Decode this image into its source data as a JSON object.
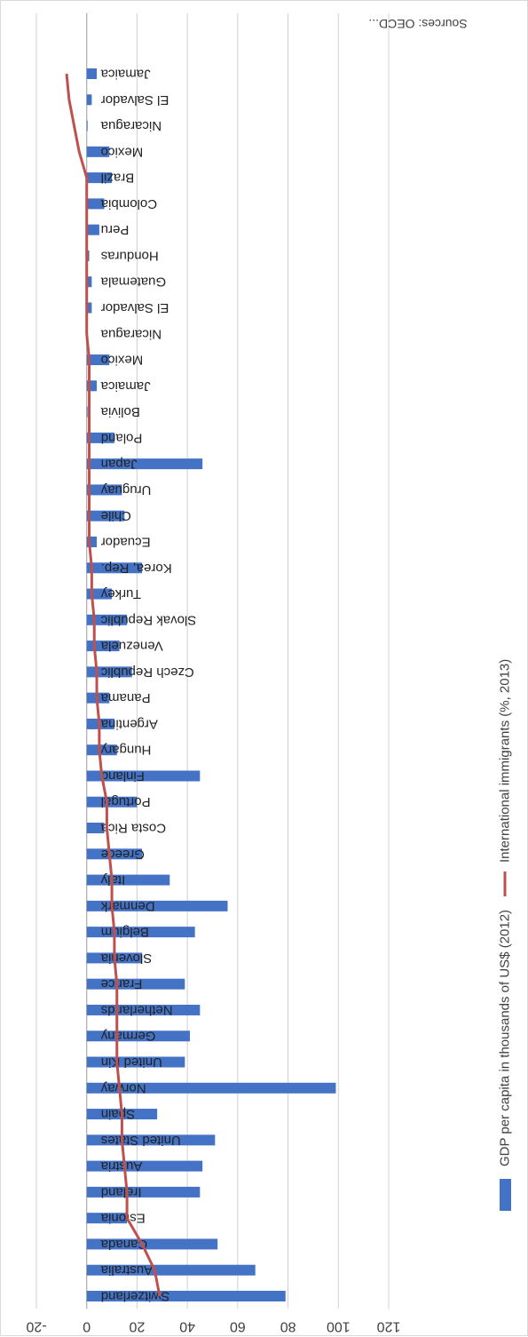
{
  "chart_data": {
    "type": "bar",
    "orientation": "horizontal",
    "text_rotation": "rotated 180 degrees",
    "categories": [
      "Switzerland",
      "Australia",
      "Canada",
      "Estonia",
      "Ireland",
      "Austria",
      "United States",
      "Spain",
      "Norway",
      "United Kin",
      "Germany",
      "Netherlands",
      "France",
      "Slovenia",
      "Belgium",
      "Denmark",
      "Italy",
      "Greece",
      "Costa Rica",
      "Portugal",
      "Finland",
      "Hungary",
      "Argentina",
      "Panama",
      "Czech Republic",
      "Venezuela",
      "Slovak Republic",
      "Turkey",
      "Korea, Rep.",
      "Ecuador",
      "Chile",
      "Uruguay",
      "Japan",
      "Poland",
      "Bolivia",
      "Jamaica",
      "Mexico",
      "Nicaragua",
      "El Salvador",
      "Guatemala",
      "Honduras",
      "Peru",
      "Colombia",
      "Brazil",
      "Mexico",
      "Nicaragua",
      "El Salvador",
      "Jamaica"
    ],
    "series": [
      {
        "name": "GDP per capita in thousands of US$ (2012)",
        "kind": "bar",
        "color": "#4472C4",
        "values": [
          79,
          67,
          52,
          16,
          45,
          46,
          51,
          28,
          99,
          39,
          41,
          45,
          39,
          22,
          43,
          56,
          33,
          22,
          7,
          20,
          45,
          12,
          11,
          9,
          18,
          13,
          16,
          10,
          22,
          4,
          15,
          14,
          46,
          11,
          0,
          4,
          9,
          0,
          2,
          2,
          1,
          5,
          7,
          10,
          9,
          0,
          2,
          4
        ]
      },
      {
        "name": "International immigrants (%, 2013)",
        "kind": "line",
        "color": "#C0504D",
        "values": [
          29,
          27,
          22,
          16,
          16,
          15,
          14,
          14,
          13,
          12,
          12,
          12,
          12,
          11,
          11,
          10,
          10,
          9,
          8,
          8,
          6,
          5,
          5,
          4,
          4,
          3,
          3,
          2,
          2,
          1,
          1,
          1,
          1,
          1,
          1,
          1,
          1,
          0,
          0,
          0,
          0,
          0,
          0,
          0,
          -3,
          -5,
          -7,
          -8
        ]
      }
    ],
    "xlim": [
      -20,
      120
    ],
    "ticks": [
      -20,
      0,
      20,
      40,
      60,
      80,
      100,
      120
    ],
    "grid": true,
    "legend_position": "right",
    "source": "Sources: OECD..."
  }
}
